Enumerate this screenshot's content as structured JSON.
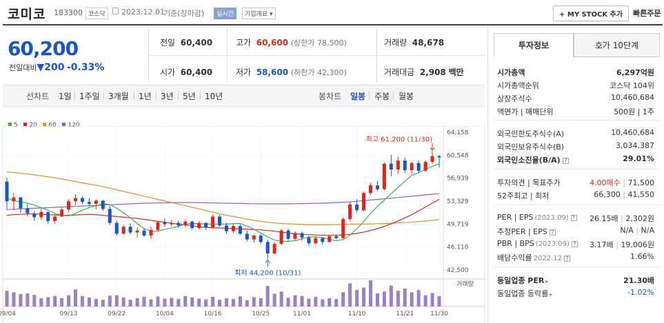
{
  "header": {
    "title": "코미코",
    "code": "183300",
    "market": "코스닥",
    "date": "2023.12.01",
    "date_note": "기준(장마감)",
    "realtime": "실시간",
    "company_info": "기업개요",
    "mystock": "MY STOCK 추가",
    "quick_order": "빠른주문"
  },
  "quote": {
    "price": "60,200",
    "change_label": "전일대비",
    "change": "200",
    "change_pct": "-0.33%",
    "prev_label": "전일",
    "prev": "60,400",
    "open_label": "시가",
    "open": "60,400",
    "high_label": "고가",
    "high": "60,600",
    "upper_limit": "(상한가 78,500)",
    "low_label": "저가",
    "low": "58,600",
    "lower_limit": "(하한가 42,300)",
    "volume_label": "거래량",
    "volume": "48,678",
    "value_label": "거래대금",
    "value": "2,908",
    "value_unit": "백만"
  },
  "tabs": {
    "line": "선차트",
    "d1": "1일",
    "w1": "1주일",
    "m3": "3개월",
    "y1": "1년",
    "y3": "3년",
    "y5": "5년",
    "y10": "10년",
    "candle": "봉차트",
    "daily": "일봉",
    "weekly": "주봉",
    "monthly": "월봉"
  },
  "colors": {
    "up": "#e0261a",
    "down": "#1756c4",
    "ma5": "#3cb34a",
    "ma20": "#e0261a",
    "ma60": "#f08c1a",
    "ma120": "#9b59d0",
    "volume": "#9b7fc7"
  },
  "chart_data": {
    "type": "candlestick",
    "legend": [
      "5",
      "20",
      "60",
      "120"
    ],
    "yticks": [
      "64,158",
      "60,548",
      "56,939",
      "53,329",
      "49,719",
      "46,110",
      "42,500"
    ],
    "ylim": [
      42500,
      64158
    ],
    "xticks": [
      "09/04",
      "09/13",
      "09/22",
      "10/04",
      "10/16",
      "10/25",
      "11/01",
      "11/10",
      "11/21",
      "11/30"
    ],
    "max_label": "최고 61,200 (11/30)",
    "min_label": "최저 44,200 (10/31)",
    "volume_label": "거래량",
    "candles": [
      [
        56400,
        57000,
        52000,
        53300
      ],
      [
        53300,
        54600,
        51900,
        53900
      ],
      [
        53900,
        54000,
        51500,
        52200
      ],
      [
        52200,
        52900,
        50900,
        51400
      ],
      [
        51400,
        51800,
        50200,
        50800
      ],
      [
        50800,
        52100,
        50400,
        51600
      ],
      [
        51600,
        51700,
        49800,
        50200
      ],
      [
        50200,
        51300,
        49800,
        50900
      ],
      [
        50900,
        52300,
        50800,
        52000
      ],
      [
        52000,
        53600,
        51700,
        53300
      ],
      [
        53300,
        54400,
        52700,
        53800
      ],
      [
        53800,
        54100,
        52800,
        53200
      ],
      [
        53200,
        53800,
        52500,
        52900
      ],
      [
        52900,
        53600,
        52000,
        53400
      ],
      [
        53400,
        53500,
        51800,
        52100
      ],
      [
        52100,
        52600,
        49600,
        49900
      ],
      [
        49900,
        50300,
        47900,
        48200
      ],
      [
        48200,
        49600,
        48000,
        49300
      ],
      [
        49300,
        49800,
        48100,
        48400
      ],
      [
        48400,
        49200,
        47600,
        48700
      ],
      [
        48700,
        49100,
        47700,
        47900
      ],
      [
        47900,
        49300,
        47400,
        48800
      ],
      [
        48800,
        50200,
        48500,
        50000
      ],
      [
        50000,
        50600,
        49300,
        49700
      ],
      [
        49700,
        50400,
        49300,
        49900
      ],
      [
        49900,
        50200,
        49100,
        49500
      ],
      [
        49500,
        50400,
        49200,
        50100
      ],
      [
        50100,
        50300,
        48900,
        49100
      ],
      [
        49100,
        50200,
        48900,
        49900
      ],
      [
        49900,
        50000,
        48800,
        49200
      ],
      [
        49200,
        51200,
        49000,
        50900
      ],
      [
        50900,
        51200,
        49300,
        49500
      ],
      [
        49500,
        49900,
        48200,
        48600
      ],
      [
        48600,
        49700,
        48300,
        49400
      ],
      [
        49400,
        49700,
        48000,
        48200
      ],
      [
        48200,
        48700,
        47000,
        47300
      ],
      [
        47300,
        48100,
        46800,
        47900
      ],
      [
        47900,
        48200,
        46600,
        46900
      ],
      [
        46900,
        47300,
        44200,
        45100
      ],
      [
        45100,
        46900,
        45000,
        46600
      ],
      [
        46600,
        49000,
        46400,
        48700
      ],
      [
        48700,
        49000,
        47100,
        47400
      ],
      [
        47400,
        48600,
        47200,
        48300
      ],
      [
        48300,
        48500,
        47100,
        47600
      ],
      [
        47600,
        47900,
        46300,
        46700
      ],
      [
        46700,
        47800,
        46500,
        47500
      ],
      [
        47500,
        47700,
        46500,
        46900
      ],
      [
        46900,
        48000,
        46800,
        47800
      ],
      [
        47800,
        48100,
        47300,
        47500
      ],
      [
        47500,
        50800,
        47400,
        50500
      ],
      [
        50500,
        53200,
        50200,
        52800
      ],
      [
        52800,
        53600,
        51600,
        51900
      ],
      [
        51900,
        54800,
        51700,
        54600
      ],
      [
        54600,
        56200,
        54300,
        55800
      ],
      [
        55800,
        56500,
        54900,
        55200
      ],
      [
        55200,
        59400,
        55000,
        59200
      ],
      [
        59200,
        60600,
        57200,
        58300
      ],
      [
        58300,
        60300,
        57600,
        59700
      ],
      [
        59700,
        60200,
        57800,
        58200
      ],
      [
        58200,
        59500,
        57600,
        59300
      ],
      [
        59300,
        59700,
        57700,
        58100
      ],
      [
        58100,
        59700,
        57900,
        59500
      ],
      [
        59500,
        61200,
        59200,
        60400
      ],
      [
        60400,
        60600,
        58600,
        60200
      ]
    ],
    "ma5": [
      53800,
      53400,
      53200,
      53000,
      52700,
      52300,
      51900,
      51400,
      51100,
      51000,
      51400,
      51900,
      52300,
      52600,
      52900,
      52800,
      52200,
      51500,
      50700,
      49800,
      49000,
      48600,
      48600,
      48900,
      49100,
      49400,
      49700,
      49800,
      49800,
      49700,
      49700,
      49700,
      49700,
      49800,
      49800,
      49400,
      48900,
      48300,
      47700,
      47200,
      47000,
      47000,
      47100,
      47400,
      47700,
      47700,
      47600,
      47300,
      47100,
      47300,
      48000,
      49000,
      50100,
      51400,
      52500,
      53500,
      54500,
      55500,
      56400,
      57400,
      57800,
      58300,
      58800,
      59200
    ],
    "ma20": [
      51100,
      51200,
      51250,
      51300,
      51300,
      51250,
      51200,
      51150,
      51100,
      51100,
      51150,
      51200,
      51250,
      51200,
      51100,
      51000,
      50900,
      50800,
      50700,
      50600,
      50450,
      50300,
      50150,
      50000,
      49850,
      49700,
      49600,
      49450,
      49300,
      49200,
      49150,
      49100,
      49050,
      49000,
      48950,
      48900,
      48850,
      48800,
      48700,
      48600,
      48450,
      48300,
      48200,
      48100,
      48050,
      48000,
      47950,
      47950,
      47950,
      48000,
      48100,
      48250,
      48450,
      48700,
      49000,
      49350,
      49750,
      50200,
      50700,
      51200,
      51800,
      52400,
      53000,
      53600
    ],
    "ma60": [
      57900,
      57800,
      57700,
      57600,
      57450,
      57300,
      57150,
      57000,
      56800,
      56600,
      56400,
      56200,
      56000,
      55800,
      55600,
      55350,
      55100,
      54850,
      54600,
      54350,
      54100,
      53850,
      53600,
      53350,
      53100,
      52850,
      52600,
      52350,
      52100,
      51850,
      51600,
      51350,
      51100,
      50900,
      50700,
      50500,
      50300,
      50150,
      50000,
      49900,
      49800,
      49750,
      49700,
      49650,
      49600,
      49600,
      49600,
      49600,
      49620,
      49650,
      49680,
      49700,
      49720,
      49750,
      49780,
      49800,
      49850,
      49900,
      49950,
      50000,
      50100,
      50200,
      50300,
      50400
    ],
    "ma120": [
      52000,
      52050,
      52100,
      52150,
      52200,
      52250,
      52300,
      52350,
      52400,
      52450,
      52500,
      52550,
      52600,
      52650,
      52700,
      52750,
      52800,
      52850,
      52900,
      52950,
      53000,
      53020,
      53040,
      53060,
      53080,
      53100,
      53100,
      53100,
      53080,
      53060,
      53040,
      53020,
      53000,
      52980,
      52960,
      52940,
      52920,
      52900,
      52900,
      52900,
      52900,
      52900,
      52920,
      52940,
      52960,
      52980,
      53000,
      53050,
      53100,
      53150,
      53200,
      53300,
      53400,
      53500,
      53600,
      53700,
      53800,
      53900,
      54000,
      54100,
      54200,
      54300,
      54400,
      54500
    ],
    "volumes": [
      42,
      38,
      33,
      35,
      31,
      22,
      25,
      28,
      22,
      30,
      45,
      28,
      24,
      20,
      18,
      29,
      30,
      24,
      18,
      22,
      26,
      19,
      27,
      21,
      23,
      20,
      28,
      24,
      21,
      19,
      26,
      18,
      22,
      20,
      27,
      17,
      25,
      22,
      55,
      34,
      40,
      23,
      30,
      28,
      21,
      26,
      19,
      22,
      20,
      38,
      62,
      44,
      50,
      70,
      35,
      40,
      56,
      42,
      48,
      38,
      44,
      30,
      36,
      28
    ]
  },
  "panel": {
    "tab1": "투자정보",
    "tab2": "호가 10단계",
    "market_cap_label": "시가총액",
    "market_cap": "6,297억원",
    "rank_label": "시가총액순위",
    "rank": "코스닥 104위",
    "shares_label": "상장주식수",
    "shares": "10,460,684",
    "par_label": "액면가 | 매매단위",
    "par": "500원 | 1주",
    "foreign_limit_label": "외국인한도주식수(A)",
    "foreign_limit": "10,460,684",
    "foreign_hold_label": "외국인보유주식수(B)",
    "foreign_hold": "3,034,387",
    "foreign_rate_label": "외국인소진율(B/A)",
    "foreign_rate": "29.01%",
    "opinion_label": "투자의견 | 목표주가",
    "opinion": "4.00매수",
    "target": "71,500",
    "w52_label": "52주최고 | 최저",
    "w52_high": "66,300",
    "w52_low": "41,550",
    "per_label": "PER | EPS",
    "per_period": "(2023.09)",
    "per": "26.15배",
    "eps": "2,302원",
    "est_per_label": "추정PER | EPS",
    "est_per": "N/A",
    "est_eps": "N/A",
    "pbr_label": "PBR | BPS",
    "pbr_period": "(2023.09)",
    "pbr": "3.17배",
    "bps": "19,006원",
    "div_label": "배당수익률",
    "div_period": "2022.12",
    "div": "1.66%",
    "ind_per_label": "동일업종 PER",
    "ind_per": "21.30배",
    "ind_rate_label": "동일업종 등락률",
    "ind_rate": "-1.02%"
  }
}
